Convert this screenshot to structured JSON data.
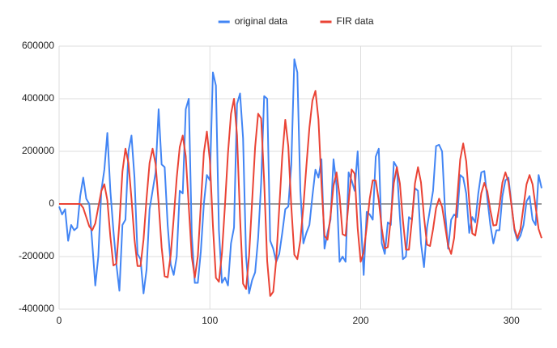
{
  "chart_data": {
    "type": "line",
    "x": [
      0,
      2,
      4,
      6,
      8,
      10,
      12,
      14,
      16,
      18,
      20,
      22,
      24,
      26,
      28,
      30,
      32,
      34,
      36,
      38,
      40,
      42,
      44,
      46,
      48,
      50,
      52,
      54,
      56,
      58,
      60,
      62,
      64,
      66,
      68,
      70,
      72,
      74,
      76,
      78,
      80,
      82,
      84,
      86,
      88,
      90,
      92,
      94,
      96,
      98,
      100,
      102,
      104,
      106,
      108,
      110,
      112,
      114,
      116,
      118,
      120,
      122,
      124,
      126,
      128,
      130,
      132,
      134,
      136,
      138,
      140,
      142,
      144,
      146,
      148,
      150,
      152,
      154,
      156,
      158,
      160,
      162,
      164,
      166,
      168,
      170,
      172,
      174,
      176,
      178,
      180,
      182,
      184,
      186,
      188,
      190,
      192,
      194,
      196,
      198,
      200,
      202,
      204,
      206,
      208,
      210,
      212,
      214,
      216,
      218,
      220,
      222,
      224,
      226,
      228,
      230,
      232,
      234,
      236,
      238,
      240,
      242,
      244,
      246,
      248,
      250,
      252,
      254,
      256,
      258,
      260,
      262,
      264,
      266,
      268,
      270,
      272,
      274,
      276,
      278,
      280,
      282,
      284,
      286,
      288,
      290,
      292,
      294,
      296,
      298,
      300,
      302,
      304,
      306,
      308,
      310,
      312,
      314,
      316,
      318,
      320
    ],
    "series": [
      {
        "name": "original data",
        "color": "#4285f4",
        "values": [
          -10000,
          -40000,
          -20000,
          -140000,
          -80000,
          -100000,
          -90000,
          30000,
          100000,
          20000,
          0,
          -150000,
          -310000,
          -200000,
          50000,
          130000,
          270000,
          50000,
          -100000,
          -230000,
          -330000,
          -80000,
          -60000,
          200000,
          260000,
          100000,
          -190000,
          -210000,
          -340000,
          -250000,
          -20000,
          50000,
          120000,
          360000,
          150000,
          140000,
          -80000,
          -230000,
          -270000,
          -200000,
          50000,
          40000,
          360000,
          400000,
          -120000,
          -300000,
          -300000,
          -180000,
          0,
          110000,
          90000,
          500000,
          450000,
          -100000,
          -300000,
          -280000,
          -310000,
          -150000,
          -90000,
          380000,
          420000,
          250000,
          -200000,
          -340000,
          -290000,
          -260000,
          -130000,
          80000,
          410000,
          400000,
          -140000,
          -170000,
          -220000,
          -190000,
          -110000,
          -20000,
          -10000,
          150000,
          550000,
          500000,
          50000,
          -150000,
          -110000,
          -80000,
          30000,
          130000,
          100000,
          170000,
          -170000,
          -110000,
          -60000,
          170000,
          70000,
          -220000,
          -200000,
          -220000,
          120000,
          90000,
          50000,
          200000,
          -50000,
          -270000,
          -30000,
          -40000,
          -60000,
          180000,
          210000,
          -150000,
          -190000,
          -70000,
          -80000,
          160000,
          140000,
          -50000,
          -210000,
          -200000,
          -50000,
          -60000,
          60000,
          50000,
          -150000,
          -240000,
          -90000,
          -20000,
          50000,
          220000,
          225000,
          200000,
          -30000,
          -170000,
          -60000,
          -40000,
          -50000,
          110000,
          100000,
          40000,
          -110000,
          -50000,
          -70000,
          40000,
          120000,
          125000,
          20000,
          -80000,
          -150000,
          -100000,
          -100000,
          30000,
          90000,
          100000,
          0,
          -100000,
          -140000,
          -120000,
          -80000,
          10000,
          30000,
          -60000,
          -80000,
          110000,
          60000
        ]
      },
      {
        "name": "FIR data",
        "color": "#ea4335",
        "values": [
          0,
          0,
          0,
          0,
          0,
          0,
          0,
          0,
          -15000,
          -50000,
          -85000,
          -100000,
          -74000,
          -12000,
          49000,
          75000,
          14000,
          -124000,
          -234000,
          -227000,
          -71000,
          123000,
          210000,
          156000,
          20000,
          -135000,
          -236000,
          -236000,
          -135000,
          20000,
          156000,
          210000,
          152000,
          3000,
          -165000,
          -275000,
          -279000,
          -195000,
          -54000,
          99000,
          216000,
          260000,
          181000,
          -10000,
          -201000,
          -280000,
          -199000,
          -2000,
          194000,
          275000,
          165000,
          -82000,
          -281000,
          -296000,
          -187000,
          -5000,
          193000,
          343000,
          400000,
          261000,
          -52000,
          -303000,
          -323000,
          -196000,
          10000,
          216000,
          343000,
          325000,
          84000,
          -217000,
          -350000,
          -334000,
          -212000,
          -15000,
          182000,
          320000,
          219000,
          -10000,
          -193000,
          -210000,
          -138000,
          -10000,
          144000,
          290000,
          393000,
          430000,
          321000,
          76000,
          -121000,
          -136000,
          -45000,
          69000,
          120000,
          30000,
          -115000,
          -121000,
          5000,
          131000,
          115000,
          -92000,
          -220000,
          -183000,
          -88000,
          20000,
          90000,
          89000,
          13000,
          -93000,
          -169000,
          -164000,
          -56000,
          80000,
          140000,
          78000,
          -62000,
          -174000,
          -174000,
          -62000,
          78000,
          140000,
          82000,
          -49000,
          -155000,
          -160000,
          -96000,
          -16000,
          20000,
          -11000,
          -85000,
          -159000,
          -190000,
          -129000,
          20000,
          169000,
          230000,
          162000,
          10000,
          -112000,
          -120000,
          -48000,
          41000,
          80000,
          48000,
          -24000,
          -82000,
          -80000,
          -8000,
          81000,
          120000,
          84000,
          -5000,
          -94000,
          -130000,
          -95000,
          -10000,
          75000,
          110000,
          75000,
          -10000,
          -95000,
          -130000
        ]
      }
    ],
    "xlim": [
      0,
      320
    ],
    "xticks": [
      0,
      100,
      200,
      300
    ],
    "ylim": [
      -400000,
      600000
    ],
    "yticks": [
      -400000,
      -200000,
      0,
      200000,
      400000,
      600000
    ],
    "grid": true,
    "legend": "top"
  }
}
